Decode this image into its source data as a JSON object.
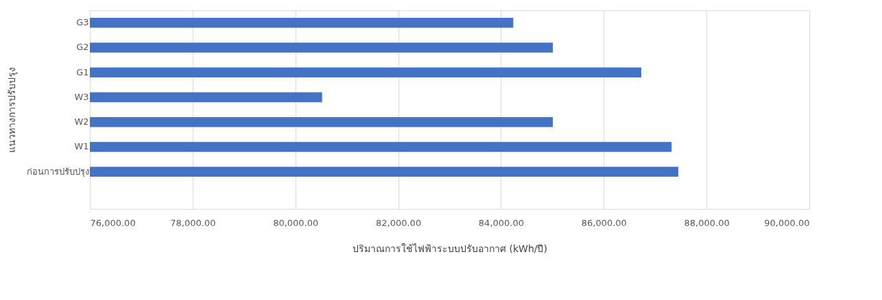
{
  "chart_data": {
    "type": "bar",
    "orientation": "horizontal",
    "xlabel": "ปริมาณการใช้ไฟฟ้าระบบปรับอากาศ (kWh/ปี)",
    "ylabel": "แนวทางการปรับปรุง",
    "categories": [
      "G3",
      "G2",
      "G1",
      "W3",
      "W2",
      "W1",
      "ก่อนการปรับปรุง"
    ],
    "values": [
      84240,
      85010,
      86730,
      80520,
      85010,
      87320,
      87450
    ],
    "color": "#4472c4",
    "xlim": [
      76000,
      90000
    ],
    "xticks": [
      {
        "value": 76000,
        "label": "76,000.00"
      },
      {
        "value": 78000,
        "label": "78,000.00"
      },
      {
        "value": 80000,
        "label": "80,000.00"
      },
      {
        "value": 82000,
        "label": "82,000.00"
      },
      {
        "value": 84000,
        "label": "84,000.00"
      },
      {
        "value": 86000,
        "label": "86,000.00"
      },
      {
        "value": 88000,
        "label": "88,000.00"
      },
      {
        "value": 90000,
        "label": "90,000.00"
      }
    ],
    "grid": "x"
  }
}
